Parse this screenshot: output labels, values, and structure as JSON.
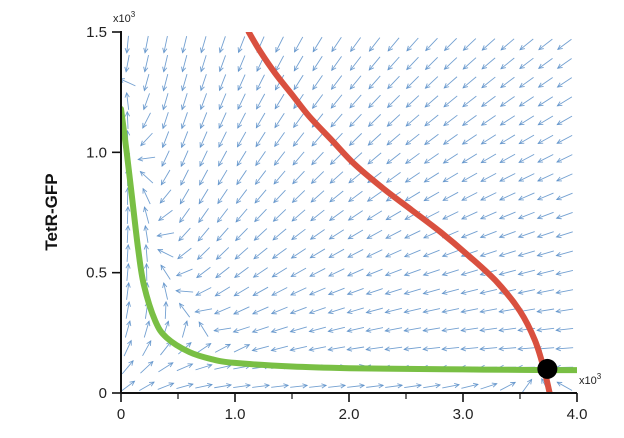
{
  "chart_data": {
    "type": "line",
    "title": "",
    "xlabel": "",
    "ylabel": "TetR-GFP",
    "x_multiplier": {
      "base": "x10",
      "exponent": "3"
    },
    "y_multiplier": {
      "base": "x10",
      "exponent": "3"
    },
    "xlim": [
      0,
      4.0
    ],
    "ylim": [
      0,
      1.5
    ],
    "x_ticks": [
      {
        "value": 0,
        "label": "0"
      },
      {
        "value": 1.0,
        "label": "1.0"
      },
      {
        "value": 2.0,
        "label": "2.0"
      },
      {
        "value": 3.0,
        "label": "3.0"
      },
      {
        "value": 4.0,
        "label": "4.0"
      }
    ],
    "x_minor_ticks": [
      0.5,
      1.5,
      2.5,
      3.5
    ],
    "y_ticks": [
      {
        "value": 0,
        "label": "0"
      },
      {
        "value": 0.5,
        "label": "0.5"
      },
      {
        "value": 1.0,
        "label": "1.0"
      },
      {
        "value": 1.5,
        "label": "1.5"
      }
    ],
    "grid": false,
    "legend": "none",
    "background_field": {
      "type": "vector_field",
      "color": "#5b8fc9"
    },
    "series": [
      {
        "color": "#d9503f",
        "x": [
          1.12,
          1.22,
          1.35,
          1.5,
          1.65,
          1.85,
          2.05,
          2.3,
          2.55,
          2.8,
          3.05,
          3.3,
          3.5,
          3.63,
          3.71,
          3.76
        ],
        "y": [
          1.5,
          1.42,
          1.33,
          1.24,
          1.15,
          1.05,
          0.95,
          0.85,
          0.76,
          0.67,
          0.57,
          0.46,
          0.34,
          0.22,
          0.1,
          0
        ]
      },
      {
        "color": "#79bf44",
        "x": [
          0,
          0.05,
          0.1,
          0.15,
          0.2,
          0.3,
          0.4,
          0.6,
          0.8,
          1.0,
          1.5,
          2.0,
          2.5,
          3.0,
          3.5,
          3.8,
          4.0
        ],
        "y": [
          1.18,
          1.0,
          0.8,
          0.6,
          0.45,
          0.3,
          0.23,
          0.17,
          0.14,
          0.125,
          0.11,
          0.103,
          0.1,
          0.098,
          0.096,
          0.095,
          0.095
        ]
      }
    ],
    "fixed_point": {
      "x": 3.74,
      "y": 0.1,
      "color": "#000000"
    }
  }
}
